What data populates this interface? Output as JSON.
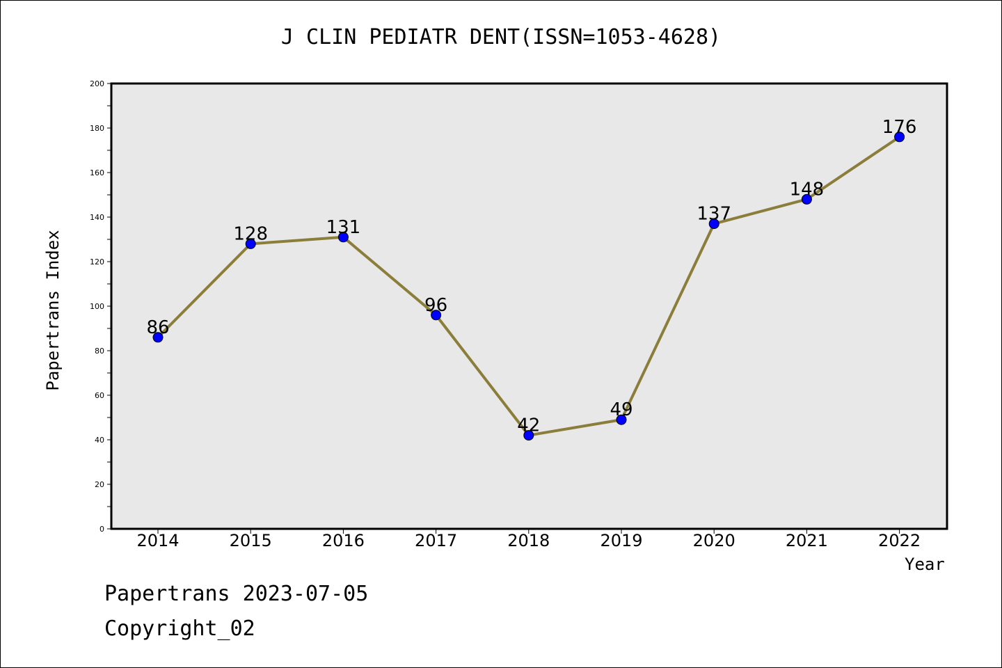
{
  "chart_data": {
    "type": "line",
    "title": "J CLIN PEDIATR DENT(ISSN=1053-4628)",
    "xlabel": "Year",
    "ylabel": "Papertrans Index",
    "categories": [
      "2014",
      "2015",
      "2016",
      "2017",
      "2018",
      "2019",
      "2020",
      "2021",
      "2022"
    ],
    "series": [
      {
        "values": [
          86,
          128,
          131,
          96,
          42,
          49,
          137,
          148,
          176
        ]
      }
    ],
    "data_labels": [
      "86",
      "128",
      "131",
      "96",
      "42",
      "49",
      "137",
      "148",
      "176"
    ],
    "ylim": [
      0,
      200
    ],
    "yticks": [
      "0",
      "20",
      "40",
      "60",
      "80",
      "100",
      "120",
      "140",
      "160",
      "180",
      "200"
    ],
    "grid": false,
    "colors": {
      "line": "#8b7d3a",
      "marker": "#0000ff",
      "plot_bg": "#e8e8e8"
    }
  },
  "footer": {
    "line1": "Papertrans 2023-07-05",
    "line2": "Copyright_02"
  }
}
